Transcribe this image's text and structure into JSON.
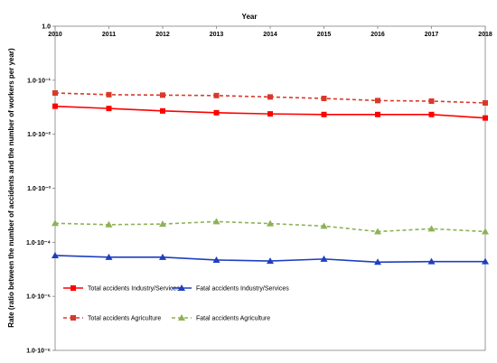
{
  "chart_data": {
    "type": "line",
    "title": "",
    "xlabel": "Year",
    "ylabel": "Rate (ratio between the number of accidents and the number of workers per year)",
    "y_scale": "log",
    "ylim": [
      1e-06,
      1.0
    ],
    "categories": [
      "2010",
      "2011",
      "2012",
      "2013",
      "2014",
      "2015",
      "2016",
      "2017",
      "2018"
    ],
    "x_axis_position": "top",
    "y_tick_labels": [
      "1.0",
      "1.0·10⁻¹",
      "1.0·10⁻²",
      "1.0·10⁻³",
      "1.0·10⁻⁴",
      "1.0·10⁻⁵",
      "1.0·10⁻⁶"
    ],
    "grid": false,
    "legend_position": "bottom",
    "series": [
      {
        "name": "Total accidents Industry/Services",
        "values": [
          0.033,
          0.03,
          0.027,
          0.025,
          0.0238,
          0.0232,
          0.0232,
          0.0232,
          0.02
        ],
        "color": "#ff0000",
        "line_style": "solid",
        "marker": "square"
      },
      {
        "name": "Fatal accidents Industry/Services",
        "values": [
          5.7e-05,
          5.3e-05,
          5.3e-05,
          4.7e-05,
          4.5e-05,
          4.9e-05,
          4.3e-05,
          4.4e-05,
          4.4e-05
        ],
        "color": "#1f3fbf",
        "line_style": "solid",
        "marker": "triangle"
      },
      {
        "name": "Total accidents Agriculture",
        "values": [
          0.058,
          0.054,
          0.053,
          0.052,
          0.049,
          0.046,
          0.042,
          0.041,
          0.038
        ],
        "color": "#d9392b",
        "line_style": "dashed",
        "marker": "square"
      },
      {
        "name": "Fatal accidents Agriculture",
        "values": [
          0.000225,
          0.000212,
          0.000218,
          0.000242,
          0.000222,
          0.0002,
          0.000158,
          0.000178,
          0.000158
        ],
        "color": "#8db255",
        "line_style": "dashed",
        "marker": "triangle"
      }
    ]
  }
}
